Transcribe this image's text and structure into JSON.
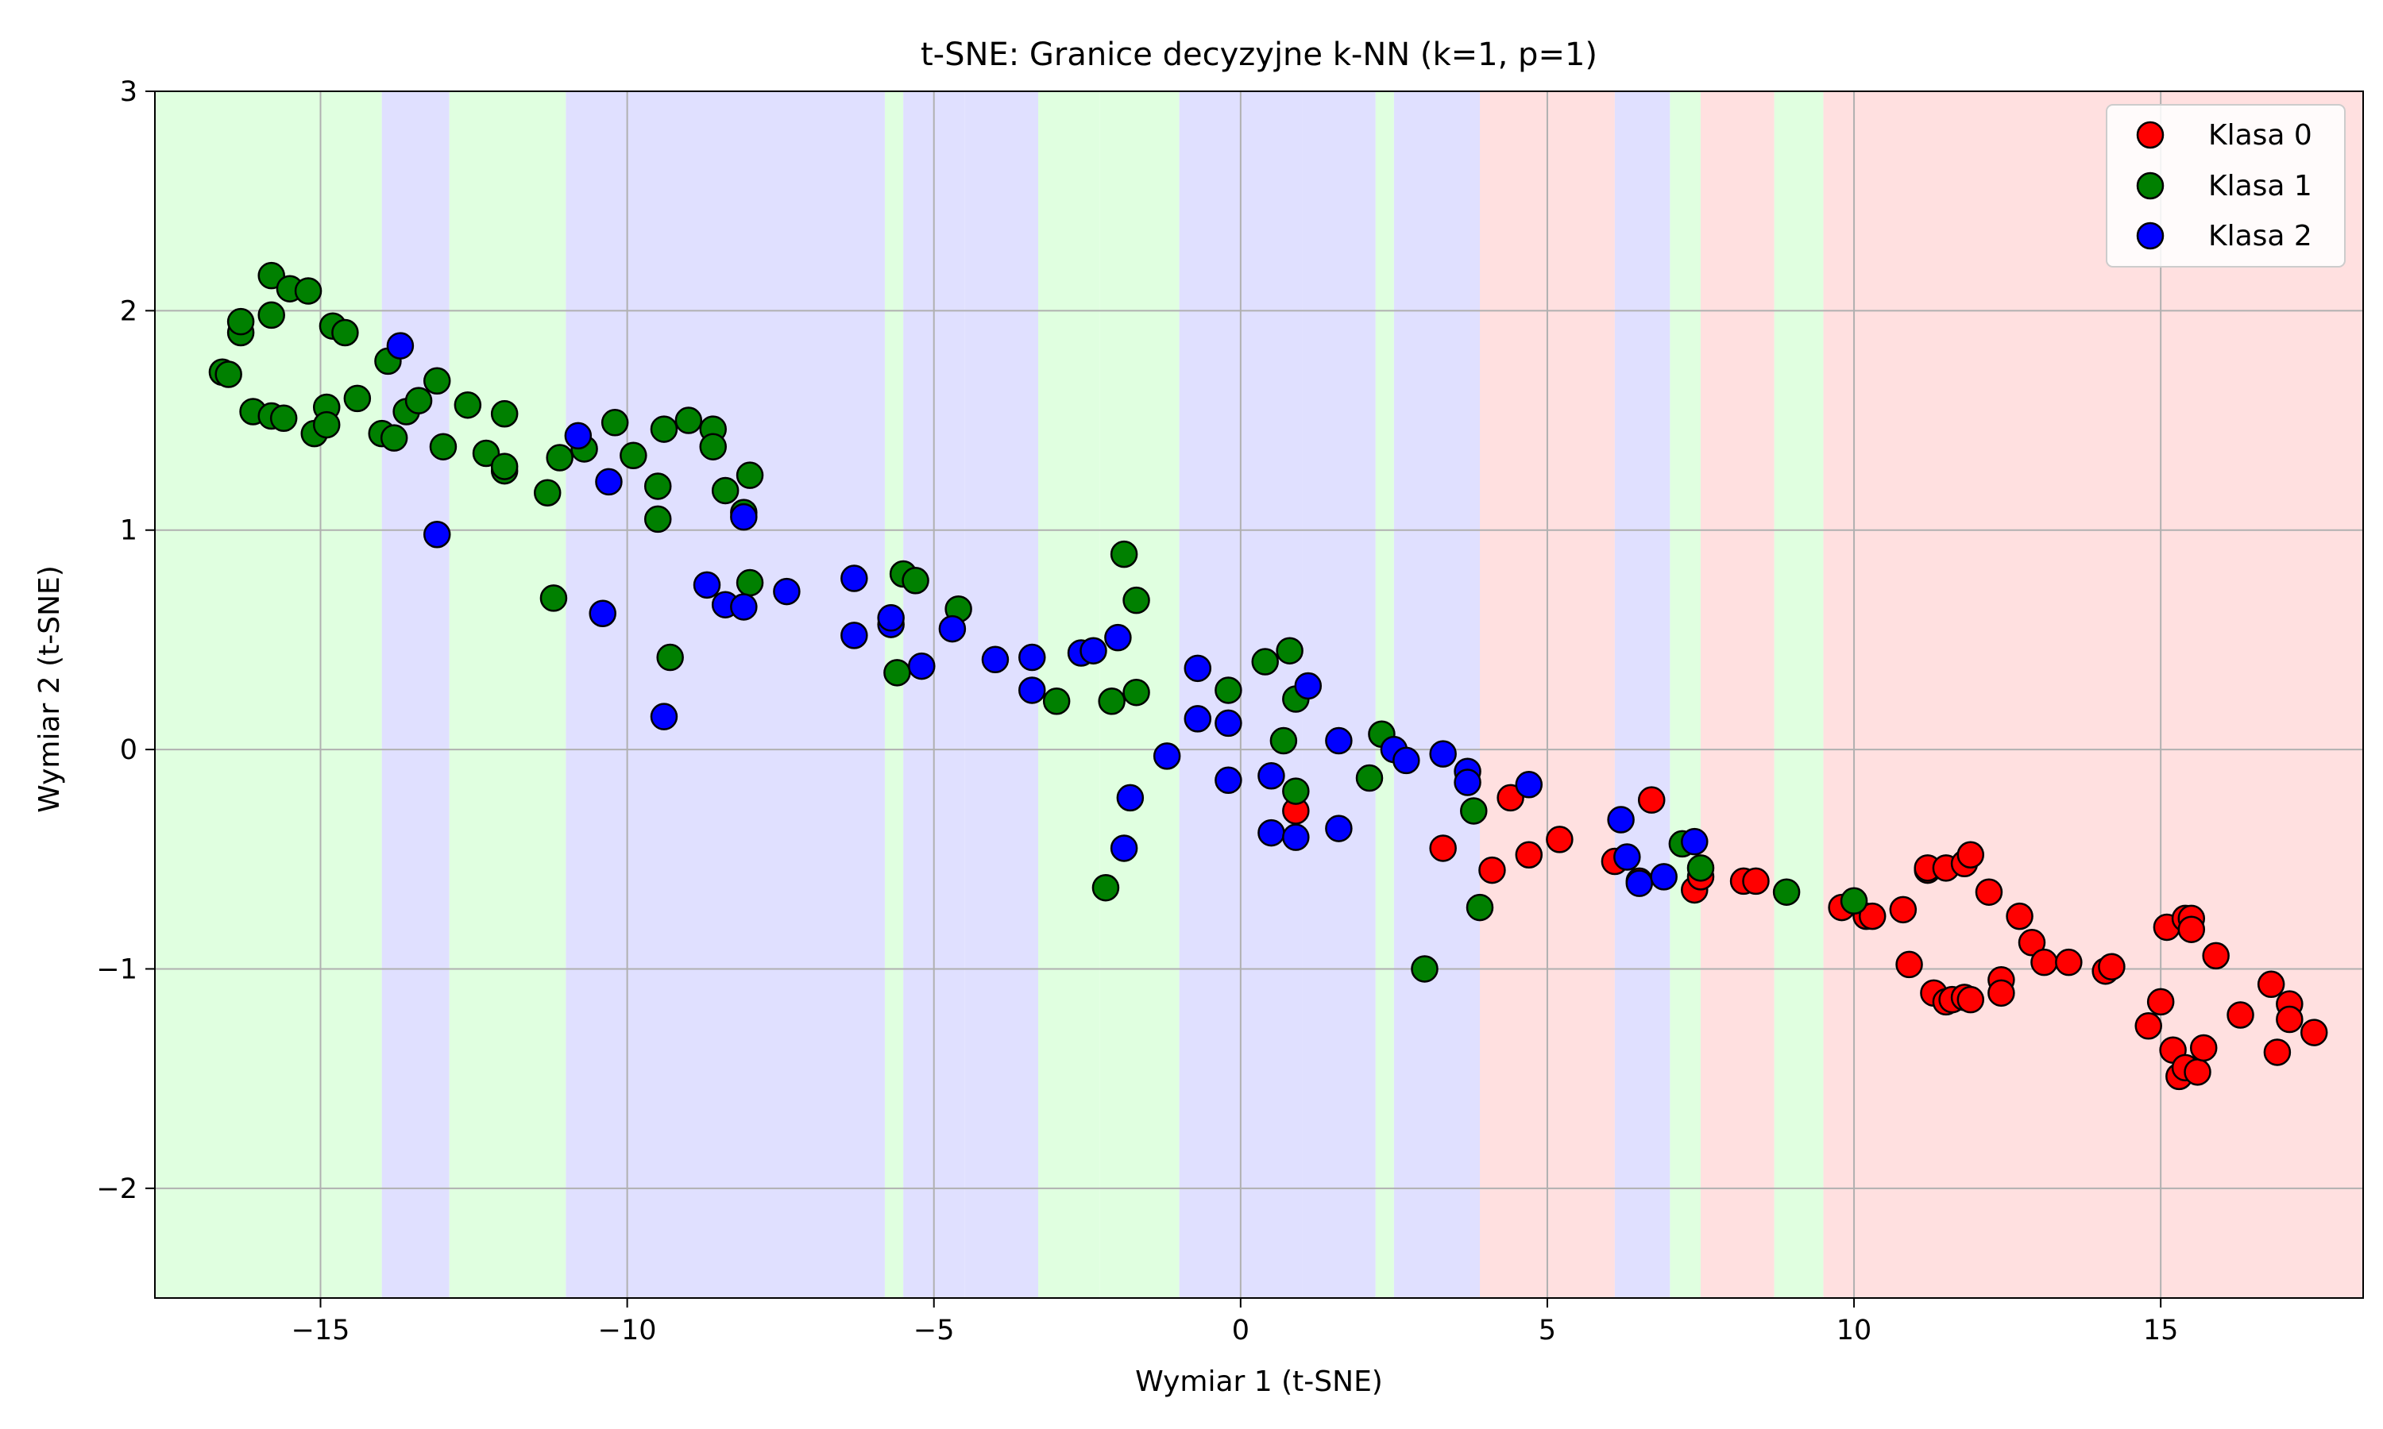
{
  "chart_data": {
    "type": "scatter",
    "title": "t-SNE: Granice decyzyjne k-NN (k=1, p=1)",
    "xlabel": "Wymiar 1 (t-SNE)",
    "ylabel": "Wymiar 2 (t-SNE)",
    "xlim": [
      -17.7,
      18.3
    ],
    "ylim": [
      -2.5,
      3.0
    ],
    "xticks": [
      -15,
      -10,
      -5,
      0,
      5,
      10,
      15
    ],
    "xtick_labels": [
      "−15",
      "−10",
      "−5",
      "0",
      "5",
      "10",
      "15"
    ],
    "yticks": [
      -2,
      -1,
      0,
      1,
      2,
      3
    ],
    "ytick_labels": [
      "−2",
      "−1",
      "0",
      "1",
      "2",
      "3"
    ],
    "grid": true,
    "legend_position": "top-right",
    "region_colors": {
      "Klasa 0": "#ffe0e0",
      "Klasa 1": "#e0ffe0",
      "Klasa 2": "#e0e0ff"
    },
    "decision_regions": [
      {
        "x_from": -17.7,
        "x_to": -14.0,
        "class": "Klasa 1"
      },
      {
        "x_from": -14.0,
        "x_to": -12.9,
        "class": "Klasa 2"
      },
      {
        "x_from": -12.9,
        "x_to": -11.0,
        "class": "Klasa 1"
      },
      {
        "x_from": -11.0,
        "x_to": -5.8,
        "class": "Klasa 2"
      },
      {
        "x_from": -5.8,
        "x_to": -5.5,
        "class": "Klasa 1"
      },
      {
        "x_from": -5.5,
        "x_to": -4.5,
        "class": "Klasa 2"
      },
      {
        "x_from": -4.5,
        "x_to": -3.3,
        "class": "Klasa 2"
      },
      {
        "x_from": -3.3,
        "x_to": -2.3,
        "class": "Klasa 1"
      },
      {
        "x_from": -2.3,
        "x_to": -1.0,
        "class": "Klasa 1"
      },
      {
        "x_from": -1.0,
        "x_to": 1.0,
        "class": "Klasa 2"
      },
      {
        "x_from": 1.0,
        "x_to": 2.2,
        "class": "Klasa 2"
      },
      {
        "x_from": 2.2,
        "x_to": 2.5,
        "class": "Klasa 1"
      },
      {
        "x_from": 2.5,
        "x_to": 3.9,
        "class": "Klasa 2"
      },
      {
        "x_from": 3.9,
        "x_to": 6.1,
        "class": "Klasa 0"
      },
      {
        "x_from": 6.1,
        "x_to": 7.0,
        "class": "Klasa 2"
      },
      {
        "x_from": 7.0,
        "x_to": 7.5,
        "class": "Klasa 1"
      },
      {
        "x_from": 7.5,
        "x_to": 8.7,
        "class": "Klasa 0"
      },
      {
        "x_from": 8.7,
        "x_to": 9.5,
        "class": "Klasa 1"
      },
      {
        "x_from": 9.5,
        "x_to": 18.3,
        "class": "Klasa 0"
      }
    ],
    "series": [
      {
        "name": "Klasa 0",
        "color": "#ff0000",
        "points": [
          [
            0.9,
            -0.28
          ],
          [
            3.3,
            -0.45
          ],
          [
            4.1,
            -0.55
          ],
          [
            4.4,
            -0.22
          ],
          [
            4.7,
            -0.48
          ],
          [
            5.2,
            -0.41
          ],
          [
            6.1,
            -0.51
          ],
          [
            6.5,
            -0.6
          ],
          [
            6.7,
            -0.23
          ],
          [
            7.4,
            -0.64
          ],
          [
            7.5,
            -0.58
          ],
          [
            8.2,
            -0.6
          ],
          [
            8.4,
            -0.6
          ],
          [
            9.8,
            -0.72
          ],
          [
            10.2,
            -0.76
          ],
          [
            10.3,
            -0.76
          ],
          [
            10.8,
            -0.73
          ],
          [
            10.9,
            -0.98
          ],
          [
            11.2,
            -0.55
          ],
          [
            11.2,
            -0.54
          ],
          [
            11.3,
            -1.11
          ],
          [
            11.5,
            -0.54
          ],
          [
            11.5,
            -1.15
          ],
          [
            11.6,
            -1.14
          ],
          [
            11.8,
            -0.52
          ],
          [
            11.8,
            -1.13
          ],
          [
            11.9,
            -0.48
          ],
          [
            11.9,
            -1.14
          ],
          [
            12.2,
            -0.65
          ],
          [
            12.4,
            -1.05
          ],
          [
            12.4,
            -1.11
          ],
          [
            12.7,
            -0.76
          ],
          [
            12.9,
            -0.88
          ],
          [
            13.1,
            -0.97
          ],
          [
            13.5,
            -0.97
          ],
          [
            14.1,
            -1.01
          ],
          [
            14.2,
            -0.99
          ],
          [
            14.8,
            -1.26
          ],
          [
            15.0,
            -1.15
          ],
          [
            15.1,
            -0.81
          ],
          [
            15.2,
            -1.37
          ],
          [
            15.3,
            -1.49
          ],
          [
            15.4,
            -0.77
          ],
          [
            15.4,
            -1.45
          ],
          [
            15.5,
            -0.77
          ],
          [
            15.5,
            -0.82
          ],
          [
            15.6,
            -1.47
          ],
          [
            15.7,
            -1.36
          ],
          [
            15.9,
            -0.94
          ],
          [
            16.3,
            -1.21
          ],
          [
            16.8,
            -1.07
          ],
          [
            16.9,
            -1.38
          ],
          [
            17.1,
            -1.16
          ],
          [
            17.1,
            -1.23
          ],
          [
            17.5,
            -1.29
          ]
        ]
      },
      {
        "name": "Klasa 1",
        "color": "#008000",
        "points": [
          [
            -16.6,
            1.72
          ],
          [
            -16.5,
            1.71
          ],
          [
            -16.3,
            1.9
          ],
          [
            -16.3,
            1.95
          ],
          [
            -16.1,
            1.54
          ],
          [
            -15.8,
            1.52
          ],
          [
            -15.8,
            2.16
          ],
          [
            -15.8,
            1.98
          ],
          [
            -15.6,
            1.51
          ],
          [
            -15.5,
            2.1
          ],
          [
            -15.2,
            2.09
          ],
          [
            -15.1,
            1.44
          ],
          [
            -14.9,
            1.56
          ],
          [
            -14.9,
            1.48
          ],
          [
            -14.8,
            1.93
          ],
          [
            -14.6,
            1.9
          ],
          [
            -14.4,
            1.6
          ],
          [
            -14.0,
            1.44
          ],
          [
            -13.8,
            1.42
          ],
          [
            -13.9,
            1.77
          ],
          [
            -13.6,
            1.54
          ],
          [
            -13.4,
            1.59
          ],
          [
            -13.1,
            1.68
          ],
          [
            -13.0,
            1.38
          ],
          [
            -12.6,
            1.57
          ],
          [
            -12.3,
            1.35
          ],
          [
            -12.0,
            1.53
          ],
          [
            -12.0,
            1.27
          ],
          [
            -12.0,
            1.29
          ],
          [
            -11.3,
            1.17
          ],
          [
            -11.2,
            0.69
          ],
          [
            -11.1,
            1.33
          ],
          [
            -10.7,
            1.37
          ],
          [
            -10.2,
            1.49
          ],
          [
            -9.9,
            1.34
          ],
          [
            -9.5,
            1.2
          ],
          [
            -9.5,
            1.05
          ],
          [
            -9.4,
            1.46
          ],
          [
            -9.3,
            0.42
          ],
          [
            -9.0,
            1.5
          ],
          [
            -8.6,
            1.46
          ],
          [
            -8.6,
            1.38
          ],
          [
            -8.4,
            1.18
          ],
          [
            -8.0,
            1.25
          ],
          [
            -8.1,
            1.08
          ],
          [
            -8.0,
            0.76
          ],
          [
            -5.6,
            0.35
          ],
          [
            -5.5,
            0.8
          ],
          [
            -5.3,
            0.77
          ],
          [
            -4.6,
            0.64
          ],
          [
            -3.0,
            0.22
          ],
          [
            -2.2,
            -0.63
          ],
          [
            -2.1,
            0.22
          ],
          [
            -1.9,
            0.89
          ],
          [
            -1.7,
            0.26
          ],
          [
            -1.7,
            0.68
          ],
          [
            -0.2,
            0.27
          ],
          [
            0.4,
            0.4
          ],
          [
            0.7,
            0.04
          ],
          [
            0.8,
            0.45
          ],
          [
            0.9,
            0.23
          ],
          [
            0.9,
            -0.19
          ],
          [
            2.1,
            -0.13
          ],
          [
            2.3,
            0.07
          ],
          [
            3.0,
            -1.0
          ],
          [
            3.8,
            -0.28
          ],
          [
            3.9,
            -0.72
          ],
          [
            7.2,
            -0.43
          ],
          [
            7.5,
            -0.54
          ],
          [
            8.9,
            -0.65
          ],
          [
            10.0,
            -0.69
          ]
        ]
      },
      {
        "name": "Klasa 2",
        "color": "#0000ff",
        "points": [
          [
            -13.7,
            1.84
          ],
          [
            -13.1,
            0.98
          ],
          [
            -10.8,
            1.43
          ],
          [
            -10.4,
            0.62
          ],
          [
            -10.3,
            1.22
          ],
          [
            -9.4,
            0.15
          ],
          [
            -8.7,
            0.75
          ],
          [
            -8.4,
            0.66
          ],
          [
            -8.1,
            1.06
          ],
          [
            -8.1,
            0.65
          ],
          [
            -7.4,
            0.72
          ],
          [
            -6.3,
            0.52
          ],
          [
            -6.3,
            0.78
          ],
          [
            -5.7,
            0.57
          ],
          [
            -5.7,
            0.6
          ],
          [
            -5.2,
            0.38
          ],
          [
            -4.7,
            0.55
          ],
          [
            -4.0,
            0.41
          ],
          [
            -3.4,
            0.27
          ],
          [
            -3.4,
            0.42
          ],
          [
            -2.6,
            0.44
          ],
          [
            -2.4,
            0.45
          ],
          [
            -2.0,
            0.51
          ],
          [
            -1.9,
            -0.45
          ],
          [
            -1.8,
            -0.22
          ],
          [
            -1.2,
            -0.03
          ],
          [
            -0.7,
            0.37
          ],
          [
            -0.7,
            0.14
          ],
          [
            -0.2,
            0.12
          ],
          [
            -0.2,
            -0.14
          ],
          [
            0.5,
            -0.12
          ],
          [
            0.5,
            -0.38
          ],
          [
            0.9,
            -0.4
          ],
          [
            1.1,
            0.29
          ],
          [
            1.6,
            0.04
          ],
          [
            1.6,
            -0.36
          ],
          [
            2.5,
            0.0
          ],
          [
            2.7,
            -0.05
          ],
          [
            3.3,
            -0.02
          ],
          [
            3.7,
            -0.1
          ],
          [
            3.7,
            -0.15
          ],
          [
            4.7,
            -0.16
          ],
          [
            6.2,
            -0.32
          ],
          [
            6.3,
            -0.49
          ],
          [
            6.5,
            -0.61
          ],
          [
            6.9,
            -0.58
          ],
          [
            7.4,
            -0.42
          ]
        ]
      }
    ]
  }
}
